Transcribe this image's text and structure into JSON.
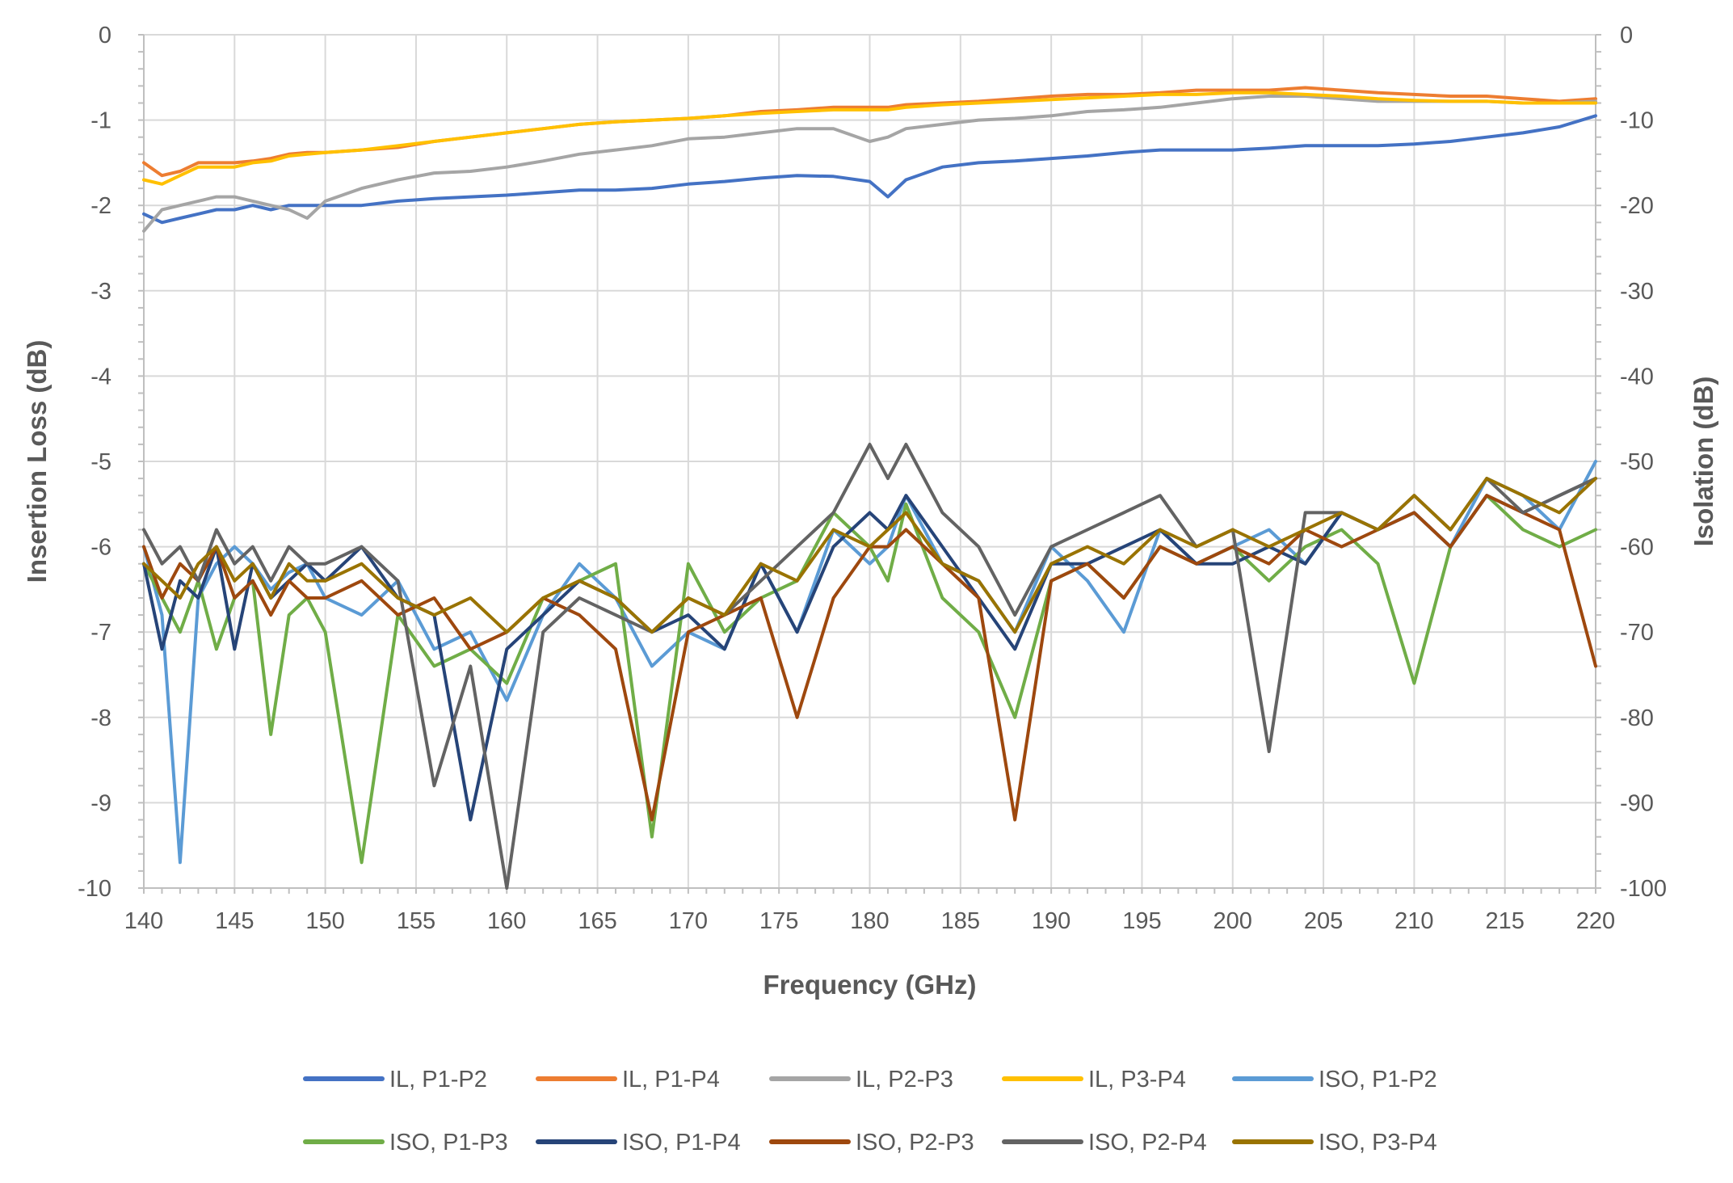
{
  "chart_data": {
    "type": "line",
    "title": "",
    "xlabel": "Frequency (GHz)",
    "ylabel": "Insertion Loss (dB)",
    "y2label": "Isolation (dB)",
    "xlim": [
      140,
      220
    ],
    "ylim": [
      -10,
      0
    ],
    "y2lim": [
      -100,
      0
    ],
    "xticks": [
      140,
      145,
      150,
      155,
      160,
      165,
      170,
      175,
      180,
      185,
      190,
      195,
      200,
      205,
      210,
      215,
      220
    ],
    "yticks": [
      0,
      -1,
      -2,
      -3,
      -4,
      -5,
      -6,
      -7,
      -8,
      -9,
      -10
    ],
    "y2ticks": [
      0,
      -10,
      -20,
      -30,
      -40,
      -50,
      -60,
      -70,
      -80,
      -90,
      -100
    ],
    "grid": true,
    "legend_position": "bottom",
    "x": [
      140,
      141,
      142,
      143,
      144,
      145,
      146,
      147,
      148,
      149,
      150,
      152,
      154,
      156,
      158,
      160,
      162,
      164,
      166,
      168,
      170,
      172,
      174,
      176,
      178,
      180,
      181,
      182,
      184,
      186,
      188,
      190,
      192,
      194,
      196,
      198,
      200,
      202,
      204,
      206,
      208,
      210,
      212,
      214,
      216,
      218,
      220
    ],
    "series": [
      {
        "name": "IL, P1-P2",
        "axis": "left",
        "color": "#4472C4",
        "values": [
          -2.1,
          -2.2,
          -2.15,
          -2.1,
          -2.05,
          -2.05,
          -2.0,
          -2.05,
          -2.0,
          -2.0,
          -2.0,
          -2.0,
          -1.95,
          -1.92,
          -1.9,
          -1.88,
          -1.85,
          -1.82,
          -1.82,
          -1.8,
          -1.75,
          -1.72,
          -1.68,
          -1.65,
          -1.66,
          -1.72,
          -1.9,
          -1.7,
          -1.55,
          -1.5,
          -1.48,
          -1.45,
          -1.42,
          -1.38,
          -1.35,
          -1.35,
          -1.35,
          -1.33,
          -1.3,
          -1.3,
          -1.3,
          -1.28,
          -1.25,
          -1.2,
          -1.15,
          -1.08,
          -0.95
        ]
      },
      {
        "name": "IL, P1-P4",
        "axis": "left",
        "color": "#ED7D31",
        "values": [
          -1.5,
          -1.65,
          -1.6,
          -1.5,
          -1.5,
          -1.5,
          -1.48,
          -1.45,
          -1.4,
          -1.38,
          -1.38,
          -1.35,
          -1.32,
          -1.25,
          -1.2,
          -1.15,
          -1.1,
          -1.05,
          -1.02,
          -1.0,
          -0.98,
          -0.95,
          -0.9,
          -0.88,
          -0.85,
          -0.85,
          -0.85,
          -0.82,
          -0.8,
          -0.78,
          -0.75,
          -0.72,
          -0.7,
          -0.7,
          -0.68,
          -0.65,
          -0.65,
          -0.65,
          -0.62,
          -0.65,
          -0.68,
          -0.7,
          -0.72,
          -0.72,
          -0.75,
          -0.78,
          -0.75
        ]
      },
      {
        "name": "IL, P2-P3",
        "axis": "left",
        "color": "#A5A5A5",
        "values": [
          -2.3,
          -2.05,
          -2.0,
          -1.95,
          -1.9,
          -1.9,
          -1.95,
          -2.0,
          -2.05,
          -2.15,
          -1.95,
          -1.8,
          -1.7,
          -1.62,
          -1.6,
          -1.55,
          -1.48,
          -1.4,
          -1.35,
          -1.3,
          -1.22,
          -1.2,
          -1.15,
          -1.1,
          -1.1,
          -1.25,
          -1.2,
          -1.1,
          -1.05,
          -1.0,
          -0.98,
          -0.95,
          -0.9,
          -0.88,
          -0.85,
          -0.8,
          -0.75,
          -0.72,
          -0.72,
          -0.75,
          -0.78,
          -0.78,
          -0.78,
          -0.78,
          -0.8,
          -0.8,
          -0.78
        ]
      },
      {
        "name": "IL, P3-P4",
        "axis": "left",
        "color": "#FFC000",
        "values": [
          -1.7,
          -1.75,
          -1.65,
          -1.55,
          -1.55,
          -1.55,
          -1.5,
          -1.48,
          -1.42,
          -1.4,
          -1.38,
          -1.35,
          -1.3,
          -1.25,
          -1.2,
          -1.15,
          -1.1,
          -1.05,
          -1.02,
          -1.0,
          -0.98,
          -0.95,
          -0.92,
          -0.9,
          -0.88,
          -0.88,
          -0.88,
          -0.85,
          -0.82,
          -0.8,
          -0.78,
          -0.76,
          -0.74,
          -0.72,
          -0.7,
          -0.7,
          -0.68,
          -0.68,
          -0.7,
          -0.72,
          -0.75,
          -0.77,
          -0.78,
          -0.78,
          -0.8,
          -0.8,
          -0.8
        ]
      },
      {
        "name": "ISO, P1-P2",
        "axis": "right",
        "color": "#5B9BD5",
        "values": [
          -60,
          -68,
          -97,
          -66,
          -62,
          -60,
          -62,
          -65,
          -63,
          -62,
          -66,
          -68,
          -64,
          -72,
          -70,
          -78,
          -68,
          -62,
          -66,
          -74,
          -70,
          -72,
          -62,
          -70,
          -58,
          -62,
          -60,
          -54,
          -62,
          -64,
          -70,
          -60,
          -64,
          -70,
          -58,
          -62,
          -60,
          -58,
          -62,
          -56,
          -58,
          -56,
          -60,
          -52,
          -54,
          -58,
          -50
        ]
      },
      {
        "name": "ISO, P1-P3",
        "axis": "right",
        "color": "#70AD47",
        "values": [
          -62,
          -66,
          -70,
          -64,
          -72,
          -66,
          -64,
          -82,
          -68,
          -66,
          -70,
          -97,
          -68,
          -74,
          -72,
          -76,
          -66,
          -64,
          -62,
          -94,
          -62,
          -70,
          -66,
          -64,
          -56,
          -60,
          -64,
          -55,
          -66,
          -70,
          -80,
          -64,
          -62,
          -66,
          -60,
          -62,
          -60,
          -64,
          -60,
          -58,
          -62,
          -76,
          -60,
          -54,
          -58,
          -60,
          -58
        ]
      },
      {
        "name": "ISO, P1-P4",
        "axis": "right",
        "color": "#264478",
        "values": [
          -62,
          -72,
          -64,
          -66,
          -60,
          -72,
          -62,
          -66,
          -64,
          -62,
          -64,
          -60,
          -66,
          -68,
          -92,
          -72,
          -68,
          -64,
          -66,
          -70,
          -68,
          -72,
          -62,
          -70,
          -60,
          -56,
          -58,
          -54,
          -60,
          -66,
          -72,
          -62,
          -62,
          -60,
          -58,
          -62,
          -62,
          -60,
          -62,
          -56,
          -58,
          -56,
          -60,
          -54,
          -56,
          -54,
          -52
        ]
      },
      {
        "name": "ISO, P2-P3",
        "axis": "right",
        "color": "#9E480E",
        "values": [
          -60,
          -66,
          -62,
          -64,
          -60,
          -66,
          -64,
          -68,
          -64,
          -66,
          -66,
          -64,
          -68,
          -66,
          -72,
          -70,
          -66,
          -68,
          -72,
          -92,
          -70,
          -68,
          -66,
          -80,
          -66,
          -60,
          -60,
          -58,
          -62,
          -66,
          -92,
          -64,
          -62,
          -66,
          -60,
          -62,
          -60,
          -62,
          -58,
          -60,
          -58,
          -56,
          -60,
          -54,
          -56,
          -58,
          -74
        ]
      },
      {
        "name": "ISO, P2-P4",
        "axis": "right",
        "color": "#636363",
        "values": [
          -58,
          -62,
          -60,
          -64,
          -58,
          -62,
          -60,
          -64,
          -60,
          -62,
          -62,
          -60,
          -64,
          -88,
          -74,
          -100,
          -70,
          -66,
          -68,
          -70,
          -66,
          -68,
          -64,
          -60,
          -56,
          -48,
          -52,
          -48,
          -56,
          -60,
          -68,
          -60,
          -58,
          -56,
          -54,
          -60,
          -58,
          -84,
          -56,
          -56,
          -58,
          -54,
          -58,
          -52,
          -56,
          -54,
          -52
        ]
      },
      {
        "name": "ISO, P3-P4",
        "axis": "right",
        "color": "#997300",
        "values": [
          -62,
          -64,
          -66,
          -62,
          -60,
          -64,
          -62,
          -66,
          -62,
          -64,
          -64,
          -62,
          -66,
          -68,
          -66,
          -70,
          -66,
          -64,
          -66,
          -70,
          -66,
          -68,
          -62,
          -64,
          -58,
          -60,
          -58,
          -56,
          -62,
          -64,
          -70,
          -62,
          -60,
          -62,
          -58,
          -60,
          -58,
          -60,
          -58,
          -56,
          -58,
          -54,
          -58,
          -52,
          -54,
          -56,
          -52
        ]
      }
    ]
  }
}
